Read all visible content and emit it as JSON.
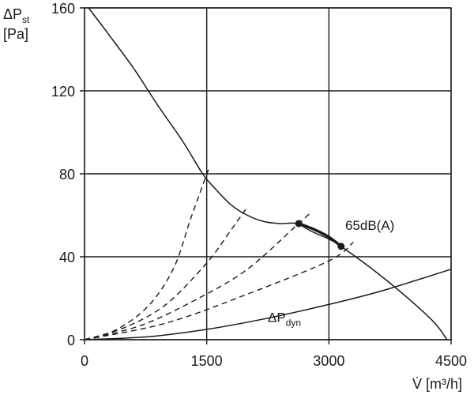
{
  "chart_data": {
    "type": "line",
    "y_axis": {
      "main": "ΔP",
      "subscript": "st",
      "unit": "[Pa]"
    },
    "x_axis": {
      "main": "V̇",
      "unit": "[m³/h]"
    },
    "xlim": [
      0,
      4500
    ],
    "ylim": [
      0,
      160
    ],
    "x_ticks": [
      {
        "value": 0,
        "label": "0"
      },
      {
        "value": 1500,
        "label": "1500"
      },
      {
        "value": 3000,
        "label": "3000"
      },
      {
        "value": 4500,
        "label": "4500"
      }
    ],
    "y_ticks": [
      {
        "value": 0,
        "label": "0"
      },
      {
        "value": 40,
        "label": "40"
      },
      {
        "value": 80,
        "label": "80"
      },
      {
        "value": 120,
        "label": "120"
      },
      {
        "value": 160,
        "label": "160"
      }
    ],
    "grid": true,
    "series": [
      {
        "key": "fan_curve",
        "style": "solid",
        "points": [
          [
            50,
            160
          ],
          [
            300,
            147
          ],
          [
            600,
            131
          ],
          [
            900,
            113
          ],
          [
            1200,
            96
          ],
          [
            1450,
            80
          ],
          [
            1600,
            73
          ],
          [
            1800,
            65
          ],
          [
            2000,
            60
          ],
          [
            2200,
            57
          ],
          [
            2400,
            56
          ],
          [
            2600,
            56
          ],
          [
            2800,
            52
          ],
          [
            3000,
            48.5
          ],
          [
            3150,
            45
          ],
          [
            3600,
            32
          ],
          [
            4000,
            19
          ],
          [
            4300,
            8
          ],
          [
            4450,
            0
          ]
        ]
      },
      {
        "key": "noise_curve",
        "style": "bold",
        "points": [
          [
            2630,
            56
          ],
          [
            2800,
            53.5
          ],
          [
            3000,
            49.5
          ],
          [
            3150,
            45
          ]
        ]
      },
      {
        "key": "system_1",
        "style": "dashed",
        "points": [
          [
            0,
            0
          ],
          [
            400,
            5
          ],
          [
            800,
            17
          ],
          [
            1100,
            35
          ],
          [
            1300,
            58
          ],
          [
            1530,
            83
          ]
        ]
      },
      {
        "key": "system_2",
        "style": "dashed",
        "points": [
          [
            0,
            0
          ],
          [
            500,
            6
          ],
          [
            1000,
            17
          ],
          [
            1500,
            37
          ],
          [
            1800,
            53
          ],
          [
            2000,
            64
          ]
        ]
      },
      {
        "key": "system_3",
        "style": "dashed",
        "points": [
          [
            0,
            0
          ],
          [
            700,
            7
          ],
          [
            1400,
            20
          ],
          [
            2000,
            34
          ],
          [
            2600,
            55
          ],
          [
            2770,
            61
          ]
        ]
      },
      {
        "key": "system_4",
        "style": "dashed",
        "points": [
          [
            0,
            0
          ],
          [
            1000,
            8
          ],
          [
            2000,
            22
          ],
          [
            3000,
            38
          ],
          [
            3300,
            47
          ]
        ]
      },
      {
        "key": "dynamic_pressure",
        "style": "solid",
        "points": [
          [
            0,
            0
          ],
          [
            800,
            1.5
          ],
          [
            1500,
            5
          ],
          [
            2200,
            10
          ],
          [
            3000,
            17
          ],
          [
            3600,
            23
          ],
          [
            4100,
            29
          ],
          [
            4500,
            34
          ]
        ]
      }
    ],
    "markers": [
      {
        "x": 2630,
        "y": 56
      },
      {
        "x": 3150,
        "y": 45
      }
    ],
    "annotations": [
      {
        "key": "noise_label",
        "text": "65dB(A)",
        "x": 3200,
        "y": 53
      },
      {
        "key": "dyn_label",
        "main": "ΔP",
        "subscript": "dyn",
        "x": 2250,
        "y": 8.5
      }
    ]
  }
}
